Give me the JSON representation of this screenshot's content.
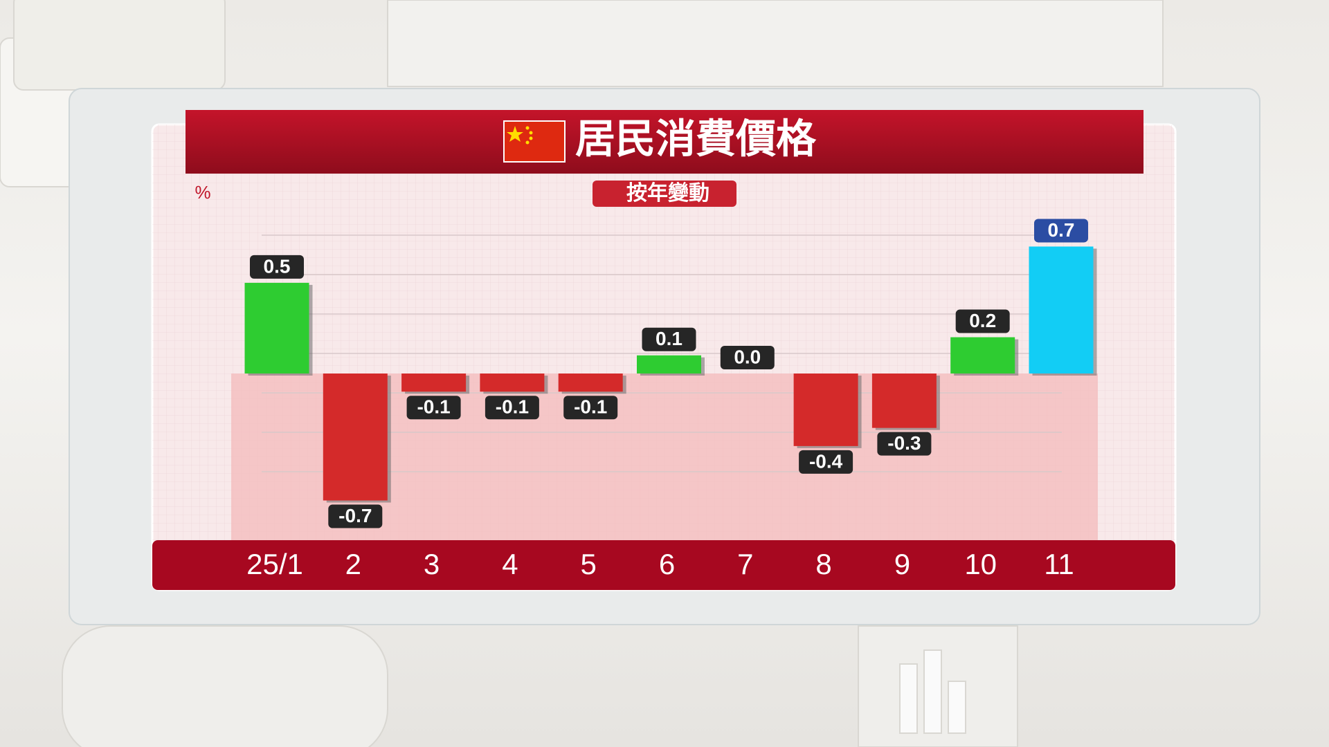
{
  "chart_data": {
    "type": "bar",
    "title": "居民消費價格",
    "subtitle": "按年變動",
    "y_unit": "%",
    "categories": [
      "25/1",
      "2",
      "3",
      "4",
      "5",
      "6",
      "7",
      "8",
      "9",
      "10",
      "11"
    ],
    "values": [
      0.5,
      -0.7,
      -0.1,
      -0.1,
      -0.1,
      0.1,
      0.0,
      -0.4,
      -0.3,
      0.2,
      0.7
    ],
    "value_labels": [
      "0.5",
      "-0.7",
      "-0.1",
      "-0.1",
      "-0.1",
      "0.1",
      "0.0",
      "-0.4",
      "-0.3",
      "0.2",
      "0.7"
    ],
    "colors": [
      "#2ecc31",
      "#d42a2a",
      "#d42a2a",
      "#d42a2a",
      "#d42a2a",
      "#2ecc31",
      "#2ecc31",
      "#d42a2a",
      "#d42a2a",
      "#2ecc31",
      "#12cdf5"
    ],
    "label_colors": [
      "#262626",
      "#262626",
      "#262626",
      "#262626",
      "#262626",
      "#262626",
      "#262626",
      "#262626",
      "#262626",
      "#262626",
      "#2b4da3"
    ],
    "ylim": [
      -0.9,
      0.9
    ]
  }
}
